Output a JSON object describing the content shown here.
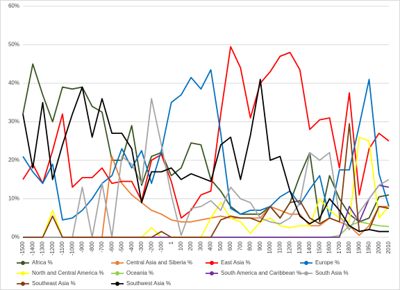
{
  "chart_data": {
    "type": "line",
    "categories": [
      "-1500",
      "-1400",
      "-1300",
      "-1200",
      "-1100",
      "-1000",
      "-900",
      "-800",
      "-700",
      "-600",
      "-500",
      "-400",
      "-300",
      "-200",
      "-100",
      "1",
      "100",
      "200",
      "300",
      "400",
      "500",
      "600",
      "700",
      "800",
      "900",
      "1000",
      "1100",
      "1200",
      "1300",
      "1400",
      "1500",
      "1600",
      "1700",
      "1800",
      "1900",
      "1950",
      "2000",
      "2010"
    ],
    "ylim": [
      0,
      60
    ],
    "yticks": [
      {
        "value": 0,
        "label": "0%"
      },
      {
        "value": 10,
        "label": "10%"
      },
      {
        "value": 20,
        "label": "20%"
      },
      {
        "value": 30,
        "label": "30%"
      },
      {
        "value": 40,
        "label": "40%"
      },
      {
        "value": 50,
        "label": "50%"
      },
      {
        "value": 60,
        "label": "60%"
      }
    ],
    "grid": true,
    "legend": "bottom",
    "series": [
      {
        "name": "Africa %",
        "color": "#375623",
        "values": [
          32,
          45,
          37,
          30,
          39,
          38.5,
          39,
          34,
          32.5,
          20,
          20,
          29,
          13.5,
          21,
          22,
          16,
          18,
          24.5,
          24,
          15,
          12,
          8,
          6,
          6,
          6,
          8,
          5,
          9,
          16,
          22,
          4,
          16,
          10,
          6,
          4,
          5,
          10.5,
          11
        ]
      },
      {
        "name": "Central Asia and Siberia %",
        "color": "#ed7d31",
        "values": [
          0,
          0,
          0,
          0,
          0,
          0,
          0,
          0,
          0,
          21,
          14,
          11,
          9,
          7,
          6,
          4.5,
          4,
          4,
          4.5,
          5,
          5.5,
          5,
          5,
          5,
          5,
          8,
          7,
          6,
          6,
          3,
          3,
          5,
          4,
          3,
          0.5,
          3,
          8,
          8
        ]
      },
      {
        "name": "East Asia %",
        "color": "#ff0000",
        "values": [
          15,
          19,
          14,
          22.5,
          32,
          13,
          15.5,
          15.5,
          18,
          14,
          14.5,
          14.5,
          9.5,
          20,
          21.5,
          14.5,
          5,
          7,
          11,
          12,
          32,
          49.5,
          44,
          31,
          40,
          43,
          47,
          48,
          43.5,
          28,
          30.5,
          31,
          18,
          37.5,
          11,
          23,
          27,
          25
        ]
      },
      {
        "name": "Europe %",
        "color": "#0070c0",
        "values": [
          21,
          17,
          14,
          19,
          4.5,
          5,
          7,
          10,
          14,
          16,
          23,
          18,
          22.5,
          14,
          22.5,
          35,
          37,
          41.5,
          38.5,
          43.5,
          27,
          7.5,
          6,
          7,
          7,
          8,
          10.5,
          12,
          8.5,
          12.5,
          16,
          5,
          17.5,
          17.5,
          29,
          41,
          16.5,
          8
        ]
      },
      {
        "name": "North and Central America %",
        "color": "#ffff00",
        "values": [
          0,
          0,
          0,
          7,
          0,
          0,
          0,
          0,
          0,
          0,
          0,
          0,
          0,
          2.5,
          0,
          0,
          0,
          0,
          0,
          5,
          9,
          5,
          4,
          1,
          4,
          5,
          3,
          2.5,
          3,
          3,
          10,
          7,
          5,
          4,
          26,
          25,
          5,
          8
        ]
      },
      {
        "name": "Oceania %",
        "color": "#92d050",
        "values": [
          0,
          0,
          0,
          0,
          0,
          0,
          0,
          0,
          0,
          0,
          0,
          0,
          0,
          0,
          0,
          0,
          0,
          0,
          0,
          0,
          0,
          0,
          0,
          0,
          0,
          0,
          0,
          0,
          0,
          0,
          0,
          0,
          0.5,
          3,
          4,
          3.5,
          3,
          2.8
        ]
      },
      {
        "name": "South America and Caribbean %",
        "color": "#7030a0",
        "values": [
          0,
          0,
          0,
          0,
          0,
          0,
          0,
          0,
          0,
          0,
          0,
          0,
          0,
          0,
          0,
          0,
          0,
          0,
          0,
          0,
          0,
          0,
          0,
          0,
          0,
          0,
          0,
          0,
          0,
          0,
          0,
          0,
          0,
          8,
          4,
          10,
          13.5,
          13
        ]
      },
      {
        "name": "South Asia %",
        "color": "#a5a5a5",
        "values": [
          0,
          0,
          0,
          0,
          0,
          0,
          13,
          0,
          14,
          0,
          21,
          19,
          14,
          36,
          24,
          11,
          0.5,
          7.5,
          8,
          9.5,
          7,
          13,
          10,
          9,
          5,
          4,
          3.5,
          5,
          9,
          22,
          20,
          22,
          5.5,
          2,
          6.5,
          10,
          13.5,
          15
        ]
      },
      {
        "name": "Southeast Asia %",
        "color": "#843c0c",
        "values": [
          0,
          0,
          0,
          5.5,
          0,
          0,
          0,
          0,
          0,
          0,
          0,
          0,
          0,
          0,
          1.5,
          0,
          0,
          0,
          0,
          0,
          4.5,
          5.5,
          5,
          5,
          4,
          8,
          5,
          9,
          9.5,
          5,
          3.5,
          5,
          4,
          29.5,
          1.5,
          2,
          8,
          7.5
        ]
      },
      {
        "name": "Southwest Asia %",
        "color": "#000000",
        "values": [
          32,
          18,
          35,
          15,
          24,
          32,
          39,
          26,
          36,
          27,
          27,
          23,
          9,
          17,
          17,
          18,
          15,
          16.5,
          15.5,
          14.5,
          24,
          26,
          15,
          26.5,
          41,
          20,
          21,
          12,
          5.5,
          3.5,
          5,
          10,
          7,
          3,
          1.5,
          2,
          1.5,
          1.5
        ]
      }
    ]
  }
}
